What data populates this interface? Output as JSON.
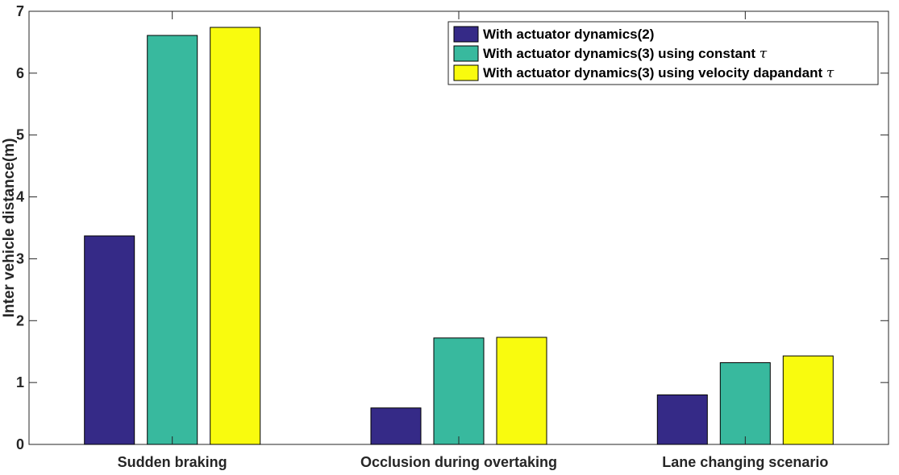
{
  "chart_data": {
    "type": "bar",
    "categories": [
      "Sudden braking",
      "Occlusion during overtaking",
      "Lane changing scenario"
    ],
    "series": [
      {
        "name": "With actuator dynamics(2)",
        "values": [
          3.37,
          0.59,
          0.8
        ],
        "color": "#352A87"
      },
      {
        "name": "With actuator dynamics(3) using constant τ",
        "values": [
          6.61,
          1.72,
          1.32
        ],
        "color": "#38B99E"
      },
      {
        "name": "With actuator dynamics(3) using velocity dapandant τ",
        "values": [
          6.74,
          1.73,
          1.43
        ],
        "color": "#F9FB0E"
      }
    ],
    "title": "",
    "xlabel": "",
    "ylabel": "Inter vehicle distance(m)",
    "ylim": [
      0,
      7
    ],
    "yticks": [
      "0",
      "1",
      "2",
      "3",
      "4",
      "5",
      "6",
      "7"
    ],
    "grid": false,
    "legend_position": "top-right"
  }
}
